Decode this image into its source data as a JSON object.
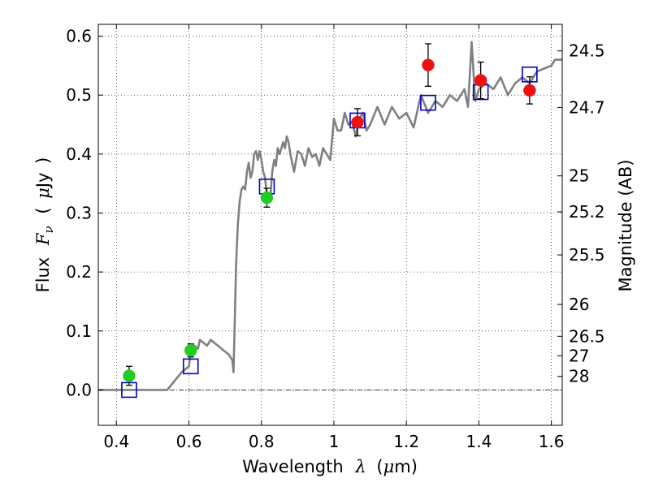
{
  "chart_data": {
    "type": "scatter",
    "xlabel": {
      "text": "Wavelength",
      "symbol": "λ",
      "unit_open": "(",
      "unit_mu": "μ",
      "unit_m": "m",
      "unit_close": ")"
    },
    "ylabel": {
      "text": "Flux",
      "symbol": "F",
      "sub": "ν",
      "unit_open": "(",
      "unit_mu": "μ",
      "unit_jy": "Jy",
      "unit_close": ")"
    },
    "y2label": "Magnitude (AB)",
    "xlim": [
      0.35,
      1.63
    ],
    "ylim": [
      -0.06,
      0.62
    ],
    "x_ticks": [
      0.4,
      0.6,
      0.8,
      1.0,
      1.2,
      1.4,
      1.6
    ],
    "x_tick_labels": [
      "0.4",
      "0.6",
      "0.8",
      "1",
      "1.2",
      "1.4",
      "1.6"
    ],
    "y_ticks": [
      0.0,
      0.1,
      0.2,
      0.3,
      0.4,
      0.5,
      0.6
    ],
    "y_tick_labels": [
      "0.0",
      "0.1",
      "0.2",
      "0.3",
      "0.4",
      "0.5",
      "0.6"
    ],
    "mag_ticks": [
      {
        "label": "24.5",
        "flux": 0.575
      },
      {
        "label": "24.7",
        "flux": 0.479
      },
      {
        "label": "25",
        "flux": 0.363
      },
      {
        "label": "25.2",
        "flux": 0.302
      },
      {
        "label": "25.5",
        "flux": 0.229
      },
      {
        "label": "26",
        "flux": 0.145
      },
      {
        "label": "26.5",
        "flux": 0.091
      },
      {
        "label": "27",
        "flux": 0.058
      },
      {
        "label": "28",
        "flux": 0.023
      }
    ],
    "grid": true,
    "zero_line": true,
    "series": [
      {
        "kind": "model_spectrum",
        "color": "#808080",
        "x": [
          0.35,
          0.54,
          0.56,
          0.58,
          0.6,
          0.605,
          0.615,
          0.625,
          0.63,
          0.64,
          0.65,
          0.66,
          0.67,
          0.68,
          0.69,
          0.7,
          0.71,
          0.72,
          0.723,
          0.727,
          0.73,
          0.735,
          0.74,
          0.745,
          0.75,
          0.755,
          0.76,
          0.765,
          0.77,
          0.775,
          0.78,
          0.785,
          0.79,
          0.795,
          0.8,
          0.805,
          0.81,
          0.815,
          0.82,
          0.825,
          0.83,
          0.835,
          0.84,
          0.845,
          0.85,
          0.855,
          0.86,
          0.865,
          0.87,
          0.875,
          0.88,
          0.89,
          0.9,
          0.91,
          0.92,
          0.93,
          0.94,
          0.95,
          0.96,
          0.97,
          0.98,
          0.99,
          1.0,
          1.01,
          1.02,
          1.03,
          1.04,
          1.05,
          1.06,
          1.07,
          1.08,
          1.09,
          1.1,
          1.12,
          1.14,
          1.16,
          1.18,
          1.2,
          1.22,
          1.24,
          1.26,
          1.28,
          1.3,
          1.32,
          1.34,
          1.36,
          1.37,
          1.38,
          1.39,
          1.4,
          1.42,
          1.44,
          1.46,
          1.48,
          1.5,
          1.52,
          1.54,
          1.56,
          1.58,
          1.6,
          1.61,
          1.63
        ],
        "y": [
          0.0,
          0.0,
          0.015,
          0.03,
          0.04,
          0.065,
          0.075,
          0.07,
          0.085,
          0.08,
          0.075,
          0.085,
          0.08,
          0.075,
          0.07,
          0.065,
          0.06,
          0.05,
          0.03,
          0.13,
          0.21,
          0.28,
          0.32,
          0.34,
          0.345,
          0.34,
          0.37,
          0.385,
          0.36,
          0.37,
          0.4,
          0.405,
          0.39,
          0.405,
          0.39,
          0.37,
          0.36,
          0.33,
          0.32,
          0.33,
          0.37,
          0.39,
          0.38,
          0.41,
          0.4,
          0.41,
          0.42,
          0.41,
          0.43,
          0.42,
          0.4,
          0.37,
          0.405,
          0.4,
          0.38,
          0.41,
          0.395,
          0.4,
          0.38,
          0.41,
          0.4,
          0.39,
          0.46,
          0.44,
          0.44,
          0.47,
          0.45,
          0.455,
          0.43,
          0.46,
          0.47,
          0.44,
          0.45,
          0.48,
          0.45,
          0.48,
          0.46,
          0.47,
          0.445,
          0.5,
          0.47,
          0.49,
          0.48,
          0.5,
          0.49,
          0.51,
          0.48,
          0.59,
          0.49,
          0.51,
          0.52,
          0.51,
          0.53,
          0.5,
          0.52,
          0.53,
          0.52,
          0.54,
          0.545,
          0.55,
          0.56,
          0.56
        ]
      },
      {
        "kind": "model_photometry",
        "marker": "open-square",
        "color": "#0000cc",
        "x": [
          0.435,
          0.605,
          0.815,
          1.065,
          1.26,
          1.405,
          1.54
        ],
        "y": [
          0.0,
          0.04,
          0.345,
          0.457,
          0.487,
          0.505,
          0.535
        ]
      },
      {
        "kind": "observed_optical",
        "marker": "filled-circle",
        "color": "#22cc22",
        "x": [
          0.435,
          0.605,
          0.815
        ],
        "y": [
          0.024,
          0.067,
          0.326
        ],
        "yerr": [
          0.016,
          0.011,
          0.016
        ]
      },
      {
        "kind": "observed_infrared",
        "marker": "filled-circle",
        "color": "#ee1111",
        "x": [
          1.065,
          1.26,
          1.405,
          1.54
        ],
        "y": [
          0.454,
          0.551,
          0.525,
          0.508
        ],
        "yerr": [
          0.023,
          0.036,
          0.031,
          0.023
        ]
      }
    ]
  }
}
